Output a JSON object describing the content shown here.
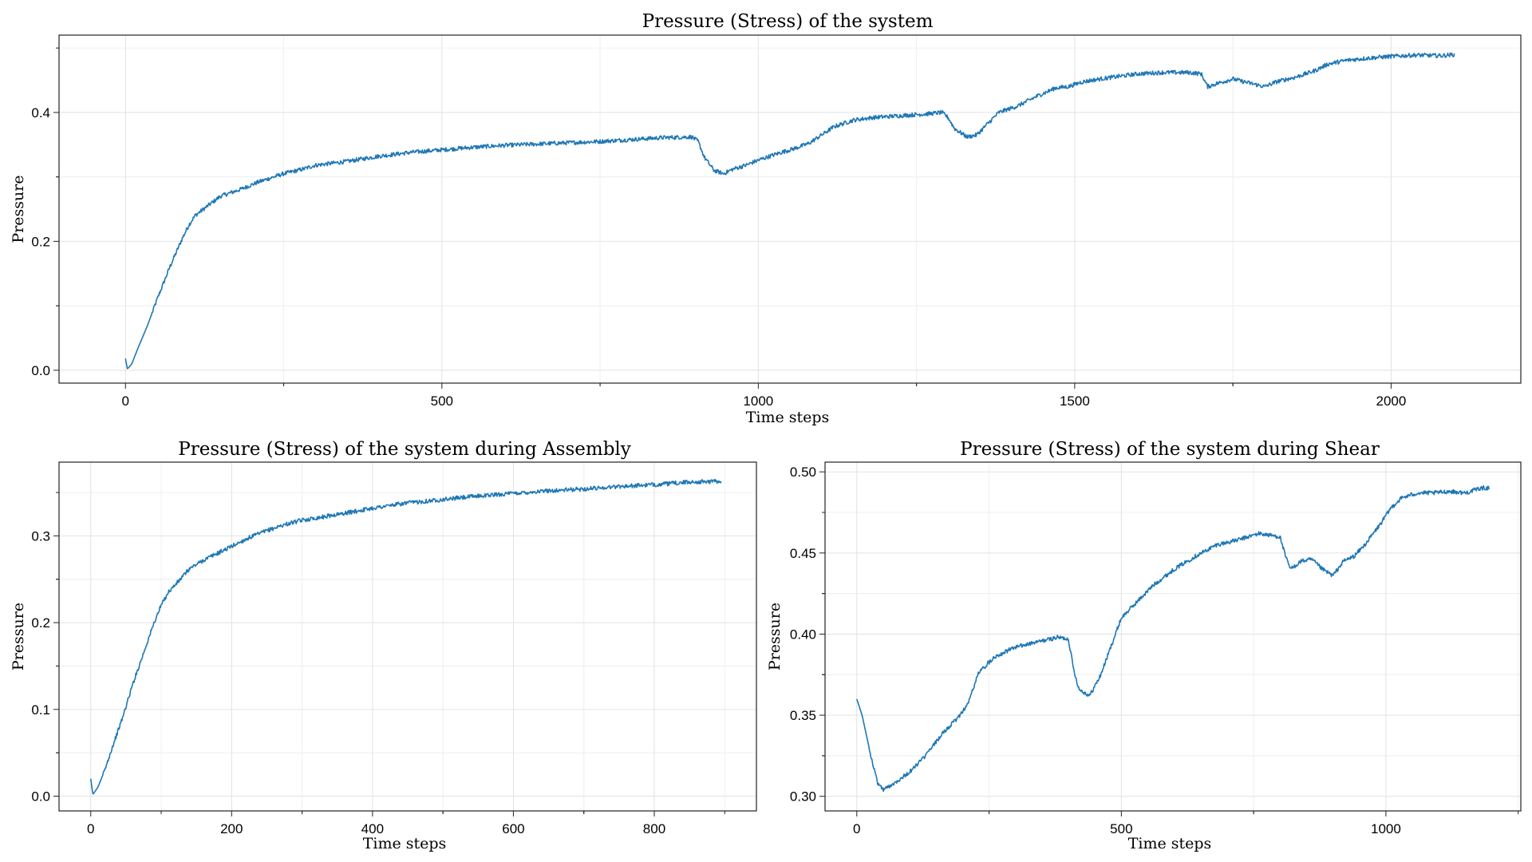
{
  "chart_data": [
    {
      "type": "line",
      "title": "Pressure (Stress) of the system",
      "xlabel": "Time steps",
      "ylabel": "Pressure",
      "xlim": [
        -105,
        2205
      ],
      "ylim": [
        -0.02,
        0.52
      ],
      "xticks": [
        0,
        500,
        1000,
        1500,
        2000
      ],
      "xtick_labels": [
        "0",
        "500",
        "1000",
        "1500",
        "2000"
      ],
      "yticks": [
        0.0,
        0.2,
        0.4
      ],
      "ytick_labels": [
        "0.0",
        "0.2",
        "0.4"
      ],
      "grid": true,
      "color": "#1f77b4",
      "series": [
        {
          "x": [
            0,
            3,
            10,
            20,
            35,
            50,
            70,
            90,
            100,
            110,
            130,
            150,
            180,
            210,
            250,
            280,
            300,
            350,
            400,
            450,
            500,
            550,
            600,
            650,
            700,
            750,
            800,
            850,
            895,
            905,
            915,
            930,
            945,
            960,
            980,
            1000,
            1030,
            1060,
            1080,
            1100,
            1120,
            1150,
            1180,
            1210,
            1240,
            1270,
            1290,
            1300,
            1310,
            1330,
            1345,
            1360,
            1380,
            1410,
            1440,
            1470,
            1490,
            1510,
            1540,
            1570,
            1600,
            1640,
            1680,
            1700,
            1710,
            1725,
            1750,
            1770,
            1800,
            1820,
            1850,
            1880,
            1900,
            1930,
            1960,
            2000,
            2040,
            2080,
            2100
          ],
          "y": [
            0.018,
            0.002,
            0.01,
            0.035,
            0.07,
            0.11,
            0.16,
            0.205,
            0.225,
            0.24,
            0.255,
            0.27,
            0.28,
            0.292,
            0.305,
            0.312,
            0.318,
            0.324,
            0.332,
            0.338,
            0.342,
            0.346,
            0.349,
            0.351,
            0.353,
            0.355,
            0.358,
            0.361,
            0.362,
            0.355,
            0.33,
            0.31,
            0.305,
            0.312,
            0.318,
            0.326,
            0.336,
            0.345,
            0.352,
            0.365,
            0.378,
            0.388,
            0.392,
            0.394,
            0.396,
            0.398,
            0.4,
            0.392,
            0.375,
            0.362,
            0.365,
            0.38,
            0.4,
            0.41,
            0.425,
            0.438,
            0.44,
            0.447,
            0.452,
            0.456,
            0.46,
            0.462,
            0.462,
            0.46,
            0.44,
            0.445,
            0.452,
            0.447,
            0.44,
            0.448,
            0.455,
            0.465,
            0.475,
            0.481,
            0.484,
            0.487,
            0.489,
            0.488,
            0.49
          ]
        }
      ]
    },
    {
      "type": "line",
      "title": "Pressure (Stress) of the system during Assembly",
      "xlabel": "Time steps",
      "ylabel": "Pressure",
      "xlim": [
        -45,
        945
      ],
      "ylim": [
        -0.017,
        0.385
      ],
      "xticks": [
        0,
        200,
        400,
        600,
        800
      ],
      "xtick_labels": [
        "0",
        "200",
        "400",
        "600",
        "800"
      ],
      "yticks": [
        0.0,
        0.1,
        0.2,
        0.3
      ],
      "ytick_labels": [
        "0.0",
        "0.1",
        "0.2",
        "0.3"
      ],
      "grid": true,
      "color": "#1f77b4",
      "series": [
        {
          "x": [
            0,
            3,
            10,
            20,
            30,
            45,
            60,
            75,
            90,
            100,
            110,
            125,
            140,
            160,
            180,
            200,
            225,
            250,
            275,
            300,
            330,
            360,
            400,
            450,
            500,
            550,
            600,
            650,
            700,
            750,
            800,
            850,
            895
          ],
          "y": [
            0.02,
            0.002,
            0.01,
            0.03,
            0.055,
            0.09,
            0.13,
            0.165,
            0.2,
            0.22,
            0.235,
            0.248,
            0.262,
            0.272,
            0.28,
            0.288,
            0.298,
            0.306,
            0.313,
            0.318,
            0.322,
            0.326,
            0.332,
            0.338,
            0.342,
            0.346,
            0.349,
            0.352,
            0.354,
            0.357,
            0.359,
            0.362,
            0.363
          ]
        }
      ]
    },
    {
      "type": "line",
      "title": "Pressure (Stress) of the system during Shear",
      "xlabel": "Time steps",
      "ylabel": "Pressure",
      "xlim": [
        -60,
        1255
      ],
      "ylim": [
        0.291,
        0.506
      ],
      "xticks": [
        0,
        500,
        1000
      ],
      "xtick_labels": [
        "0",
        "500",
        "1000"
      ],
      "yticks": [
        0.3,
        0.35,
        0.4,
        0.45,
        0.5
      ],
      "ytick_labels": [
        "0.30",
        "0.35",
        "0.40",
        "0.45",
        "0.50"
      ],
      "grid": true,
      "color": "#1f77b4",
      "series": [
        {
          "x": [
            0,
            10,
            20,
            30,
            40,
            50,
            70,
            100,
            130,
            160,
            190,
            210,
            230,
            260,
            300,
            340,
            380,
            400,
            410,
            420,
            440,
            460,
            480,
            500,
            530,
            560,
            600,
            640,
            680,
            720,
            760,
            800,
            810,
            820,
            840,
            860,
            880,
            900,
            920,
            940,
            960,
            990,
            1010,
            1030,
            1060,
            1090,
            1120,
            1150,
            1180,
            1195
          ],
          "y": [
            0.36,
            0.35,
            0.335,
            0.32,
            0.308,
            0.304,
            0.308,
            0.315,
            0.325,
            0.338,
            0.348,
            0.357,
            0.376,
            0.386,
            0.392,
            0.395,
            0.398,
            0.397,
            0.378,
            0.366,
            0.362,
            0.374,
            0.392,
            0.41,
            0.42,
            0.43,
            0.44,
            0.448,
            0.455,
            0.458,
            0.462,
            0.46,
            0.448,
            0.44,
            0.445,
            0.446,
            0.44,
            0.436,
            0.445,
            0.448,
            0.455,
            0.468,
            0.478,
            0.484,
            0.487,
            0.487,
            0.488,
            0.487,
            0.49,
            0.49
          ]
        }
      ]
    }
  ]
}
